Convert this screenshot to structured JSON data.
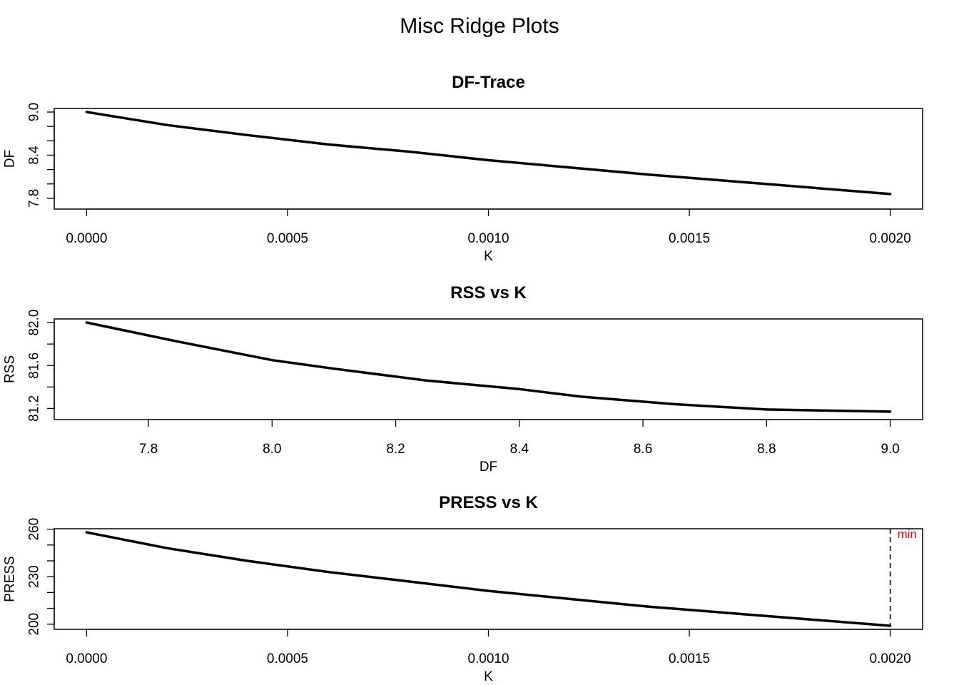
{
  "title": "Misc Ridge Plots",
  "chart_data": [
    {
      "type": "line",
      "title": "DF-Trace",
      "xlabel": "K",
      "ylabel": "DF",
      "xlim": [
        0,
        0.002
      ],
      "ylim": [
        7.7,
        9.0
      ],
      "xticks": [
        0,
        0.0005,
        0.001,
        0.0015,
        0.002
      ],
      "xtick_labels": [
        "0.0000",
        "0.0005",
        "0.0010",
        "0.0015",
        "0.0020"
      ],
      "yticks": [
        7.8,
        8.0,
        8.2,
        8.4,
        8.6,
        8.8,
        9.0
      ],
      "ytick_labels": [
        "7.8",
        "",
        "",
        "8.4",
        "",
        "",
        "9.0"
      ],
      "series": [
        {
          "x": [
            0,
            0.0002,
            0.0004,
            0.0006,
            0.0008,
            0.001,
            0.0012,
            0.0014,
            0.0016,
            0.0018,
            0.002
          ],
          "y": [
            9.0,
            8.82,
            8.68,
            8.55,
            8.45,
            8.33,
            8.23,
            8.13,
            8.04,
            7.95,
            7.86
          ]
        }
      ],
      "grid": false
    },
    {
      "type": "line",
      "title": "RSS vs K",
      "xlabel": "DF",
      "ylabel": "RSS",
      "xlim": [
        7.7,
        9.0
      ],
      "ylim": [
        81.13,
        82.0
      ],
      "xticks": [
        7.8,
        8.0,
        8.2,
        8.4,
        8.6,
        8.8,
        9.0
      ],
      "xtick_labels": [
        "7.8",
        "8.0",
        "8.2",
        "8.4",
        "8.6",
        "8.8",
        "9.0"
      ],
      "yticks": [
        81.2,
        81.4,
        81.6,
        81.8,
        82.0
      ],
      "ytick_labels": [
        "81.2",
        "",
        "81.6",
        "",
        "82.0"
      ],
      "series": [
        {
          "x": [
            7.7,
            7.85,
            8.0,
            8.1,
            8.25,
            8.4,
            8.5,
            8.65,
            8.8,
            9.0
          ],
          "y": [
            82.0,
            81.82,
            81.65,
            81.57,
            81.46,
            81.38,
            81.31,
            81.24,
            81.19,
            81.17
          ]
        }
      ],
      "grid": false
    },
    {
      "type": "line",
      "title": "PRESS vs K",
      "xlabel": "K",
      "ylabel": "PRESS",
      "xlim": [
        0,
        0.002
      ],
      "ylim": [
        199,
        258
      ],
      "xticks": [
        0,
        0.0005,
        0.001,
        0.0015,
        0.002
      ],
      "xtick_labels": [
        "0.0000",
        "0.0005",
        "0.0010",
        "0.0015",
        "0.0020"
      ],
      "yticks": [
        200,
        210,
        220,
        230,
        240,
        250,
        260
      ],
      "ytick_labels": [
        "200",
        "",
        "",
        "230",
        "",
        "",
        "260"
      ],
      "series": [
        {
          "x": [
            0,
            0.0002,
            0.0004,
            0.0006,
            0.0008,
            0.001,
            0.0012,
            0.0014,
            0.0016,
            0.0018,
            0.002
          ],
          "y": [
            258,
            248,
            240,
            233,
            227,
            221,
            216,
            211,
            207,
            203,
            199
          ]
        }
      ],
      "vline": {
        "x": 0.002,
        "style": "dashed"
      },
      "annotation": {
        "text": "min",
        "x": 0.002,
        "color": "#ff0000"
      },
      "grid": false
    }
  ]
}
